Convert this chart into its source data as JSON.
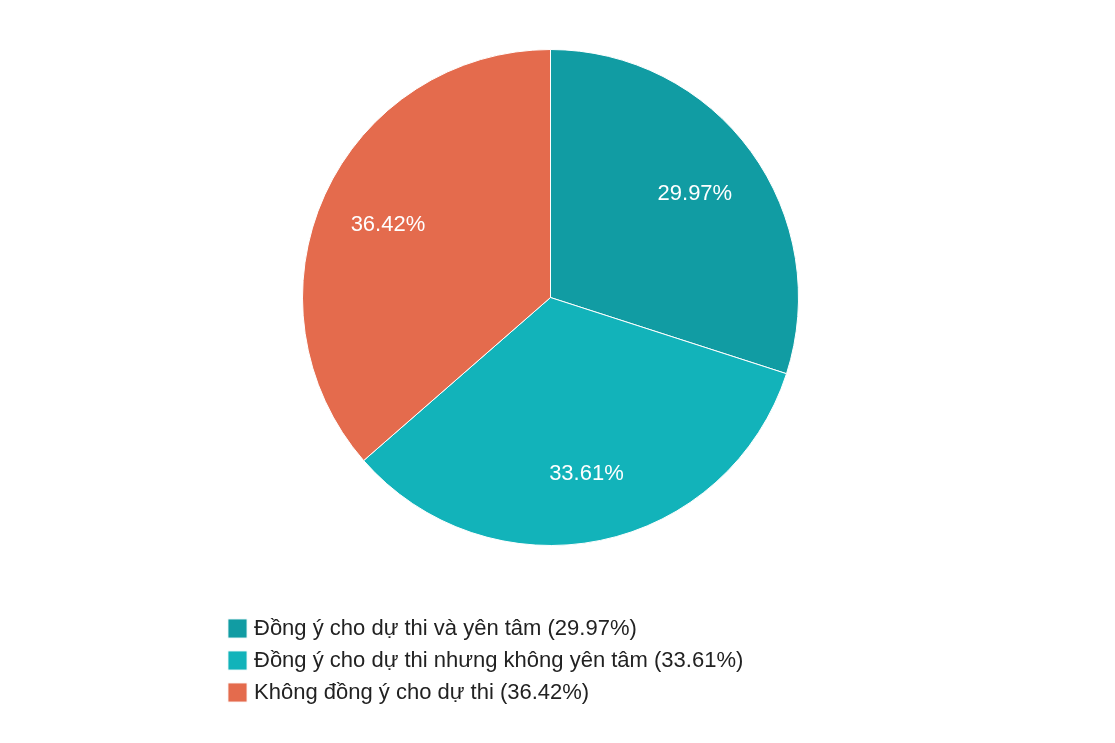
{
  "chart_data": {
    "type": "pie",
    "categories": [
      "Đồng ý cho dự thi và yên tâm (29.97%)",
      "Đồng ý cho dự thi nhưng không yên tâm (33.61%)",
      "Không đồng ý cho dự thi (36.42%)"
    ],
    "values": [
      29.97,
      33.61,
      36.42
    ],
    "colors": [
      "#119ca3",
      "#12b3ba",
      "#e46b4d"
    ],
    "value_labels": [
      "29.97%",
      "33.61%",
      "36.42%"
    ],
    "legend": "bottom"
  }
}
